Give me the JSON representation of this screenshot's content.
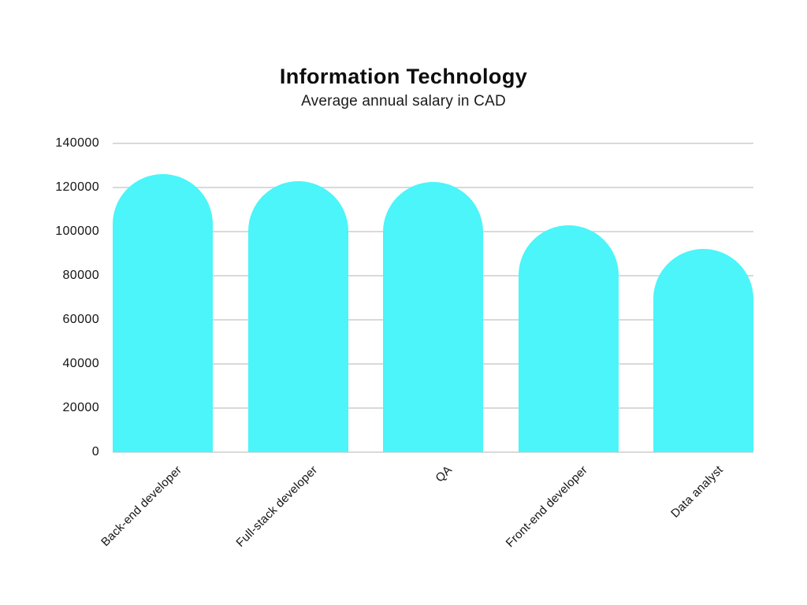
{
  "header": {
    "title": "Information Technology",
    "subtitle": "Average annual salary in CAD"
  },
  "colors": {
    "bar_fill": "#4BF5F9",
    "gridline": "#D9D9D9",
    "title_text": "#0D0D0D",
    "axis_text": "#141414",
    "background": "#FFFFFF"
  },
  "chart_data": {
    "type": "bar",
    "title": "Information Technology",
    "subtitle": "Average annual salary in CAD",
    "categories": [
      "Back-end developer",
      "Full-stack developer",
      "QA",
      "Front-end developer",
      "Data analyst"
    ],
    "values": [
      126000,
      123000,
      122500,
      103000,
      92000
    ],
    "xlabel": "",
    "ylabel": "",
    "ylim": [
      0,
      140000
    ],
    "yticks": [
      0,
      20000,
      40000,
      60000,
      80000,
      100000,
      120000,
      140000
    ],
    "grid": true,
    "legend_position": "none",
    "bar_style": "rounded-top",
    "x_tick_rotation_deg": 45
  }
}
